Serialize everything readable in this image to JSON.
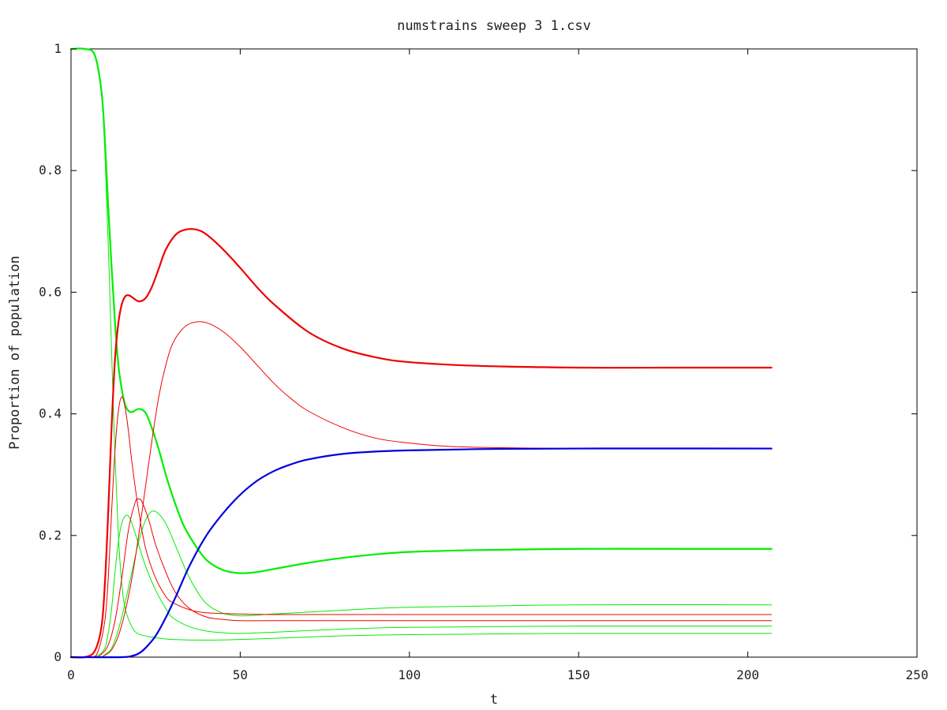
{
  "chart_data": {
    "type": "line",
    "title": "numstrains sweep 3 1.csv",
    "xlabel": "t",
    "ylabel": "Proportion of population",
    "xlim": [
      0,
      250
    ],
    "ylim": [
      0,
      1
    ],
    "xticks": [
      0,
      50,
      100,
      150,
      200,
      250
    ],
    "yticks": [
      0,
      0.2,
      0.4,
      0.6,
      0.8,
      1
    ],
    "ytick_labels": [
      "0",
      "0.2",
      "0.4",
      "0.6",
      "0.8",
      "1"
    ],
    "grid": false,
    "legend": "none",
    "series": [
      {
        "color": "#00ee00",
        "width": 2.2,
        "points": [
          [
            0,
            1
          ],
          [
            4,
            1
          ],
          [
            7,
            0.99
          ],
          [
            9,
            0.93
          ],
          [
            10,
            0.85
          ],
          [
            11,
            0.74
          ],
          [
            12,
            0.64
          ],
          [
            13,
            0.55
          ],
          [
            14,
            0.48
          ],
          [
            15,
            0.44
          ],
          [
            16,
            0.415
          ],
          [
            17,
            0.405
          ],
          [
            18,
            0.403
          ],
          [
            20,
            0.408
          ],
          [
            22,
            0.402
          ],
          [
            24,
            0.375
          ],
          [
            26,
            0.34
          ],
          [
            28,
            0.3
          ],
          [
            30,
            0.265
          ],
          [
            33,
            0.22
          ],
          [
            36,
            0.19
          ],
          [
            40,
            0.16
          ],
          [
            45,
            0.143
          ],
          [
            50,
            0.138
          ],
          [
            55,
            0.14
          ],
          [
            60,
            0.145
          ],
          [
            70,
            0.155
          ],
          [
            80,
            0.163
          ],
          [
            90,
            0.169
          ],
          [
            100,
            0.173
          ],
          [
            120,
            0.176
          ],
          [
            150,
            0.178
          ],
          [
            180,
            0.178
          ],
          [
            207,
            0.178
          ]
        ]
      },
      {
        "color": "#00ee00",
        "width": 1,
        "points": [
          [
            0,
            1
          ],
          [
            4,
            1
          ],
          [
            7,
            0.99
          ],
          [
            9,
            0.93
          ],
          [
            10,
            0.83
          ],
          [
            11,
            0.68
          ],
          [
            12,
            0.5
          ],
          [
            13,
            0.33
          ],
          [
            14,
            0.2
          ],
          [
            15,
            0.12
          ],
          [
            16,
            0.08
          ],
          [
            18,
            0.05
          ],
          [
            20,
            0.038
          ],
          [
            25,
            0.032
          ],
          [
            30,
            0.029
          ],
          [
            40,
            0.028
          ],
          [
            50,
            0.029
          ],
          [
            60,
            0.031
          ],
          [
            80,
            0.035
          ],
          [
            100,
            0.037
          ],
          [
            150,
            0.039
          ],
          [
            207,
            0.039
          ]
        ]
      },
      {
        "color": "#00ee00",
        "width": 1,
        "points": [
          [
            0,
            0
          ],
          [
            5,
            0
          ],
          [
            8,
            0.003
          ],
          [
            10,
            0.015
          ],
          [
            11,
            0.04
          ],
          [
            12,
            0.08
          ],
          [
            13,
            0.14
          ],
          [
            14,
            0.19
          ],
          [
            15,
            0.22
          ],
          [
            16,
            0.232
          ],
          [
            17,
            0.232
          ],
          [
            18,
            0.22
          ],
          [
            20,
            0.185
          ],
          [
            22,
            0.15
          ],
          [
            25,
            0.11
          ],
          [
            28,
            0.08
          ],
          [
            30,
            0.065
          ],
          [
            35,
            0.05
          ],
          [
            40,
            0.043
          ],
          [
            45,
            0.04
          ],
          [
            50,
            0.039
          ],
          [
            60,
            0.041
          ],
          [
            80,
            0.046
          ],
          [
            100,
            0.049
          ],
          [
            150,
            0.051
          ],
          [
            207,
            0.051
          ]
        ]
      },
      {
        "color": "#00ee00",
        "width": 1,
        "points": [
          [
            0,
            0
          ],
          [
            8,
            0
          ],
          [
            10,
            0.004
          ],
          [
            12,
            0.015
          ],
          [
            14,
            0.045
          ],
          [
            16,
            0.09
          ],
          [
            18,
            0.14
          ],
          [
            20,
            0.19
          ],
          [
            22,
            0.225
          ],
          [
            24,
            0.24
          ],
          [
            26,
            0.235
          ],
          [
            28,
            0.22
          ],
          [
            30,
            0.195
          ],
          [
            33,
            0.155
          ],
          [
            36,
            0.12
          ],
          [
            40,
            0.088
          ],
          [
            45,
            0.072
          ],
          [
            50,
            0.068
          ],
          [
            55,
            0.069
          ],
          [
            60,
            0.071
          ],
          [
            80,
            0.077
          ],
          [
            100,
            0.082
          ],
          [
            150,
            0.086
          ],
          [
            207,
            0.086
          ]
        ]
      },
      {
        "color": "#ee0000",
        "width": 2.2,
        "points": [
          [
            0,
            0
          ],
          [
            4,
            0
          ],
          [
            7,
            0.01
          ],
          [
            9,
            0.05
          ],
          [
            10,
            0.12
          ],
          [
            11,
            0.24
          ],
          [
            12,
            0.38
          ],
          [
            13,
            0.49
          ],
          [
            14,
            0.55
          ],
          [
            15,
            0.58
          ],
          [
            16,
            0.593
          ],
          [
            17,
            0.595
          ],
          [
            18,
            0.592
          ],
          [
            20,
            0.585
          ],
          [
            22,
            0.59
          ],
          [
            24,
            0.61
          ],
          [
            26,
            0.64
          ],
          [
            28,
            0.67
          ],
          [
            31,
            0.695
          ],
          [
            34,
            0.703
          ],
          [
            37,
            0.703
          ],
          [
            40,
            0.695
          ],
          [
            45,
            0.67
          ],
          [
            50,
            0.64
          ],
          [
            55,
            0.608
          ],
          [
            60,
            0.58
          ],
          [
            70,
            0.535
          ],
          [
            80,
            0.508
          ],
          [
            90,
            0.493
          ],
          [
            100,
            0.485
          ],
          [
            120,
            0.479
          ],
          [
            150,
            0.476
          ],
          [
            180,
            0.476
          ],
          [
            207,
            0.476
          ]
        ]
      },
      {
        "color": "#ee0000",
        "width": 1,
        "points": [
          [
            0,
            0
          ],
          [
            6,
            0
          ],
          [
            8,
            0.01
          ],
          [
            10,
            0.06
          ],
          [
            11,
            0.13
          ],
          [
            12,
            0.24
          ],
          [
            13,
            0.34
          ],
          [
            14,
            0.405
          ],
          [
            15,
            0.428
          ],
          [
            16,
            0.41
          ],
          [
            17,
            0.37
          ],
          [
            18,
            0.32
          ],
          [
            20,
            0.24
          ],
          [
            22,
            0.18
          ],
          [
            25,
            0.13
          ],
          [
            28,
            0.1
          ],
          [
            30,
            0.09
          ],
          [
            35,
            0.078
          ],
          [
            40,
            0.073
          ],
          [
            50,
            0.071
          ],
          [
            60,
            0.07
          ],
          [
            100,
            0.07
          ],
          [
            150,
            0.07
          ],
          [
            207,
            0.07
          ]
        ]
      },
      {
        "color": "#ee0000",
        "width": 1,
        "points": [
          [
            0,
            0
          ],
          [
            7,
            0
          ],
          [
            9,
            0.005
          ],
          [
            11,
            0.02
          ],
          [
            13,
            0.06
          ],
          [
            15,
            0.13
          ],
          [
            17,
            0.21
          ],
          [
            19,
            0.255
          ],
          [
            20,
            0.26
          ],
          [
            21,
            0.255
          ],
          [
            23,
            0.225
          ],
          [
            25,
            0.185
          ],
          [
            28,
            0.14
          ],
          [
            31,
            0.105
          ],
          [
            35,
            0.08
          ],
          [
            40,
            0.066
          ],
          [
            45,
            0.062
          ],
          [
            50,
            0.06
          ],
          [
            60,
            0.06
          ],
          [
            100,
            0.06
          ],
          [
            150,
            0.06
          ],
          [
            207,
            0.06
          ]
        ]
      },
      {
        "color": "#ee0000",
        "width": 1,
        "points": [
          [
            0,
            0
          ],
          [
            8,
            0
          ],
          [
            10,
            0.003
          ],
          [
            12,
            0.012
          ],
          [
            14,
            0.035
          ],
          [
            16,
            0.075
          ],
          [
            18,
            0.13
          ],
          [
            20,
            0.2
          ],
          [
            22,
            0.28
          ],
          [
            24,
            0.36
          ],
          [
            26,
            0.43
          ],
          [
            28,
            0.48
          ],
          [
            30,
            0.515
          ],
          [
            33,
            0.54
          ],
          [
            36,
            0.55
          ],
          [
            40,
            0.55
          ],
          [
            45,
            0.535
          ],
          [
            50,
            0.51
          ],
          [
            55,
            0.48
          ],
          [
            60,
            0.45
          ],
          [
            65,
            0.425
          ],
          [
            70,
            0.405
          ],
          [
            80,
            0.378
          ],
          [
            90,
            0.36
          ],
          [
            100,
            0.352
          ],
          [
            110,
            0.347
          ],
          [
            120,
            0.345
          ],
          [
            150,
            0.343
          ],
          [
            207,
            0.343
          ]
        ]
      },
      {
        "color": "#0000dd",
        "width": 2.2,
        "points": [
          [
            0,
            0
          ],
          [
            15,
            0
          ],
          [
            18,
            0.002
          ],
          [
            20,
            0.006
          ],
          [
            22,
            0.015
          ],
          [
            25,
            0.035
          ],
          [
            28,
            0.065
          ],
          [
            31,
            0.1
          ],
          [
            35,
            0.15
          ],
          [
            40,
            0.2
          ],
          [
            45,
            0.237
          ],
          [
            50,
            0.267
          ],
          [
            55,
            0.29
          ],
          [
            60,
            0.306
          ],
          [
            65,
            0.317
          ],
          [
            70,
            0.325
          ],
          [
            80,
            0.334
          ],
          [
            90,
            0.338
          ],
          [
            100,
            0.34
          ],
          [
            120,
            0.342
          ],
          [
            150,
            0.343
          ],
          [
            207,
            0.343
          ]
        ]
      }
    ]
  }
}
